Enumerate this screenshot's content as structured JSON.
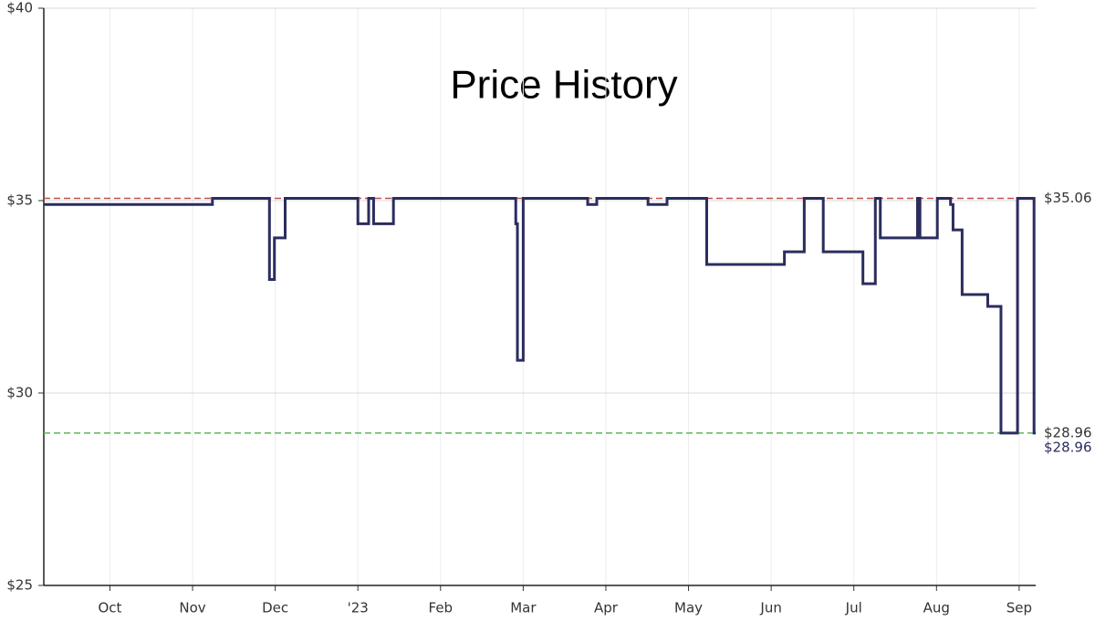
{
  "chart_data": {
    "type": "step",
    "title": "Price History",
    "xlim": [
      -0.8,
      11.2
    ],
    "xticks": [
      {
        "value": 0,
        "label": "Oct"
      },
      {
        "value": 1,
        "label": "Nov"
      },
      {
        "value": 2,
        "label": "Dec"
      },
      {
        "value": 3,
        "label": "'23"
      },
      {
        "value": 4,
        "label": "Feb"
      },
      {
        "value": 5,
        "label": "Mar"
      },
      {
        "value": 6,
        "label": "Apr"
      },
      {
        "value": 7,
        "label": "May"
      },
      {
        "value": 8,
        "label": "Jun"
      },
      {
        "value": 9,
        "label": "Jul"
      },
      {
        "value": 10,
        "label": "Aug"
      },
      {
        "value": 11,
        "label": "Sep"
      }
    ],
    "ylim": [
      25,
      40
    ],
    "yticks": [
      {
        "value": 25,
        "label": "$25"
      },
      {
        "value": 30,
        "label": "$30"
      },
      {
        "value": 35,
        "label": "$35"
      },
      {
        "value": 40,
        "label": "$40"
      }
    ],
    "grid": true,
    "series": [
      {
        "color": "#2b2d5e",
        "x": [
          -0.8,
          1.24,
          1.93,
          1.99,
          2.12,
          3.0,
          3.13,
          3.19,
          3.43,
          4.91,
          4.93,
          5.0,
          5.78,
          5.89,
          6.51,
          6.74,
          7.22,
          8.16,
          8.4,
          8.63,
          9.11,
          9.26,
          9.32,
          9.77,
          9.8,
          10.01,
          10.17,
          10.2,
          10.31,
          10.62,
          10.78,
          10.98,
          11.18
        ],
        "values": [
          34.9,
          35.06,
          32.95,
          34.03,
          35.06,
          34.4,
          35.06,
          34.4,
          35.06,
          34.4,
          30.85,
          35.06,
          34.9,
          35.06,
          34.9,
          35.06,
          33.34,
          33.67,
          35.06,
          33.67,
          32.84,
          35.06,
          34.03,
          35.06,
          34.03,
          35.06,
          34.9,
          34.24,
          32.56,
          32.25,
          28.96,
          35.06,
          28.96
        ],
        "end_label": {
          "value": 28.96,
          "label": "$28.96"
        }
      }
    ],
    "reference_lines": [
      {
        "value": 35.06,
        "label": "$35.06",
        "color": "#c0504d"
      },
      {
        "value": 28.96,
        "label": "$28.96",
        "color": "#5cb85c"
      }
    ]
  }
}
